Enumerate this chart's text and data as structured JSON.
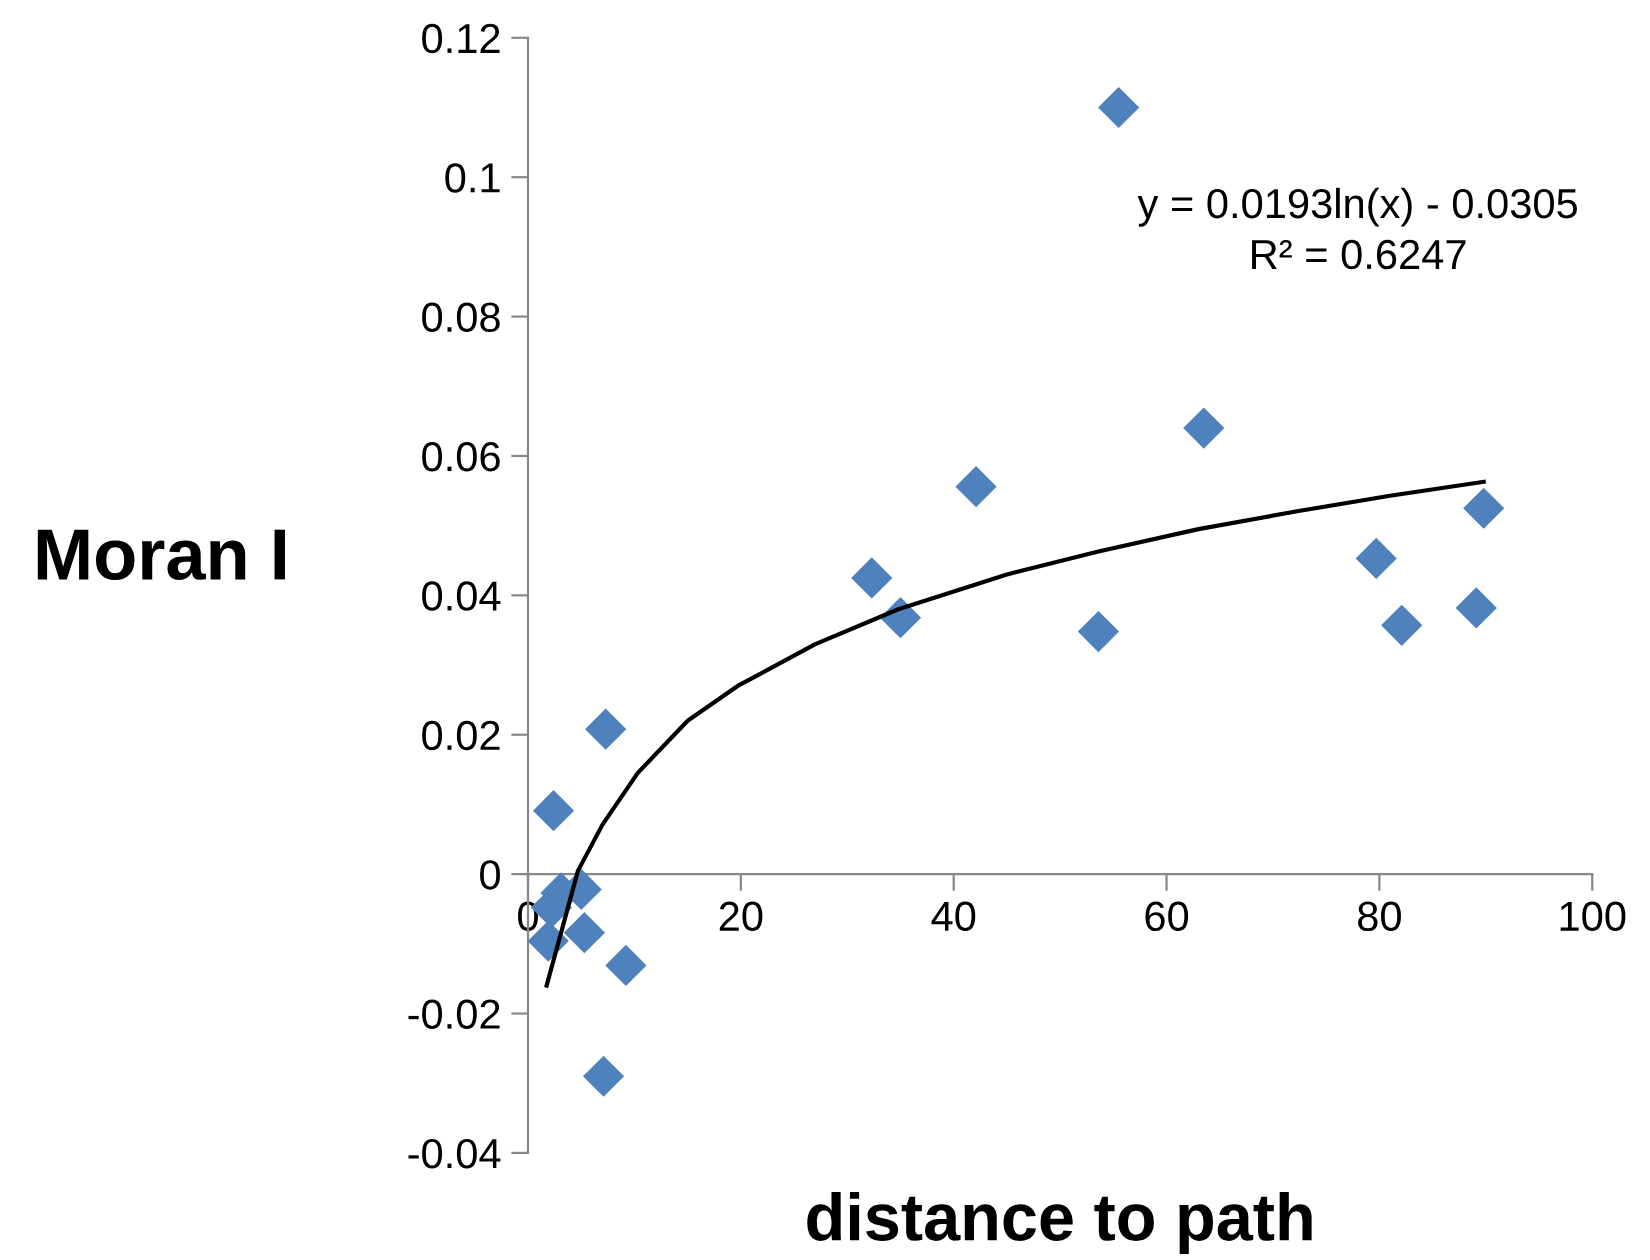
{
  "chart_data": {
    "type": "scatter",
    "xlabel": "distance to path",
    "ylabel": "Moran I",
    "xlim": [
      0,
      100
    ],
    "xticks": [
      0,
      20,
      40,
      60,
      80,
      100
    ],
    "ylim": [
      -0.04,
      0.12
    ],
    "yticks": [
      -0.04,
      -0.02,
      0,
      0.02,
      0.04,
      0.06,
      0.08,
      0.1,
      0.12
    ],
    "grid": false,
    "marker": "diamond",
    "series": [
      {
        "color": "#4f81bd",
        "x": [
          55.5,
          63.5,
          42.1,
          32.3,
          35.0,
          53.6,
          79.7,
          89.8,
          82.1,
          89.1,
          7.3,
          2.4,
          9.2,
          7.1,
          3.1,
          5.0,
          2.2,
          1.9,
          5.3
        ],
        "values": [
          0.11,
          0.064,
          0.0556,
          0.0425,
          0.0368,
          0.0348,
          0.0453,
          0.0525,
          0.0357,
          0.0382,
          0.0208,
          0.0091,
          -0.0131,
          -0.029,
          -0.0027,
          -0.0022,
          -0.0048,
          -0.0096,
          -0.0084
        ]
      },
      {
        "type": "line",
        "color": "#000000",
        "marker": "none",
        "x": [
          1.75,
          3,
          4.7,
          7,
          10.3,
          15,
          19.7,
          27,
          34.8,
          45,
          53.6,
          63,
          72.4,
          81,
          89.8
        ],
        "values": [
          -0.016,
          -0.009,
          0.0005,
          0.0071,
          0.0145,
          0.022,
          0.027,
          0.033,
          0.038,
          0.043,
          0.0463,
          0.0495,
          0.0521,
          0.0543,
          0.0563
        ]
      }
    ],
    "annotations": [
      "y = 0.0193ln(x) - 0.0305\nR² = 0.6247"
    ]
  }
}
